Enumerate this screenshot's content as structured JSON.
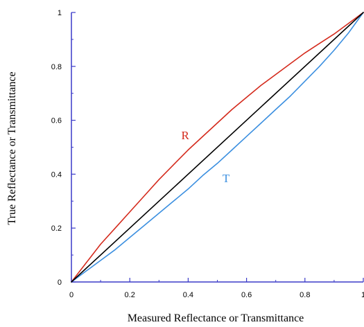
{
  "chart_data": {
    "type": "line",
    "title": "",
    "xlabel": "Measured Reflectance or Transmittance",
    "ylabel": "True Reflectance or Transmittance",
    "xlim": [
      0,
      1
    ],
    "ylim": [
      0,
      1
    ],
    "x_ticks": [
      "0",
      "0.2",
      "0.4",
      "0.6",
      "0.8",
      "1"
    ],
    "y_ticks": [
      "0",
      "0.2",
      "0.4",
      "0.6",
      "0.8",
      "1"
    ],
    "grid": false,
    "legend": "none",
    "series": [
      {
        "name": "R",
        "color": "#d42a1c",
        "label_at": [
          0.39,
          0.53
        ],
        "x": [
          0,
          0.05,
          0.1,
          0.15,
          0.2,
          0.25,
          0.3,
          0.35,
          0.4,
          0.45,
          0.5,
          0.55,
          0.6,
          0.65,
          0.7,
          0.75,
          0.8,
          0.85,
          0.9,
          0.95,
          1
        ],
        "y": [
          0,
          0.07,
          0.14,
          0.2,
          0.26,
          0.32,
          0.38,
          0.435,
          0.49,
          0.54,
          0.59,
          0.64,
          0.685,
          0.73,
          0.77,
          0.81,
          0.85,
          0.885,
          0.92,
          0.96,
          1
        ]
      },
      {
        "name": "T",
        "color": "#3b8fe0",
        "label_at": [
          0.53,
          0.37
        ],
        "x": [
          0,
          0.05,
          0.1,
          0.15,
          0.2,
          0.25,
          0.3,
          0.35,
          0.4,
          0.45,
          0.5,
          0.55,
          0.6,
          0.65,
          0.7,
          0.75,
          0.8,
          0.85,
          0.9,
          0.95,
          1
        ],
        "y": [
          0,
          0.04,
          0.08,
          0.12,
          0.165,
          0.21,
          0.255,
          0.3,
          0.345,
          0.395,
          0.44,
          0.49,
          0.54,
          0.59,
          0.64,
          0.69,
          0.745,
          0.8,
          0.86,
          0.925,
          1
        ]
      },
      {
        "color": "#000000",
        "x": [
          0,
          1
        ],
        "y": [
          0,
          1
        ]
      }
    ]
  },
  "colors": {
    "axis": "#3a3ac8",
    "text": "#000000"
  }
}
